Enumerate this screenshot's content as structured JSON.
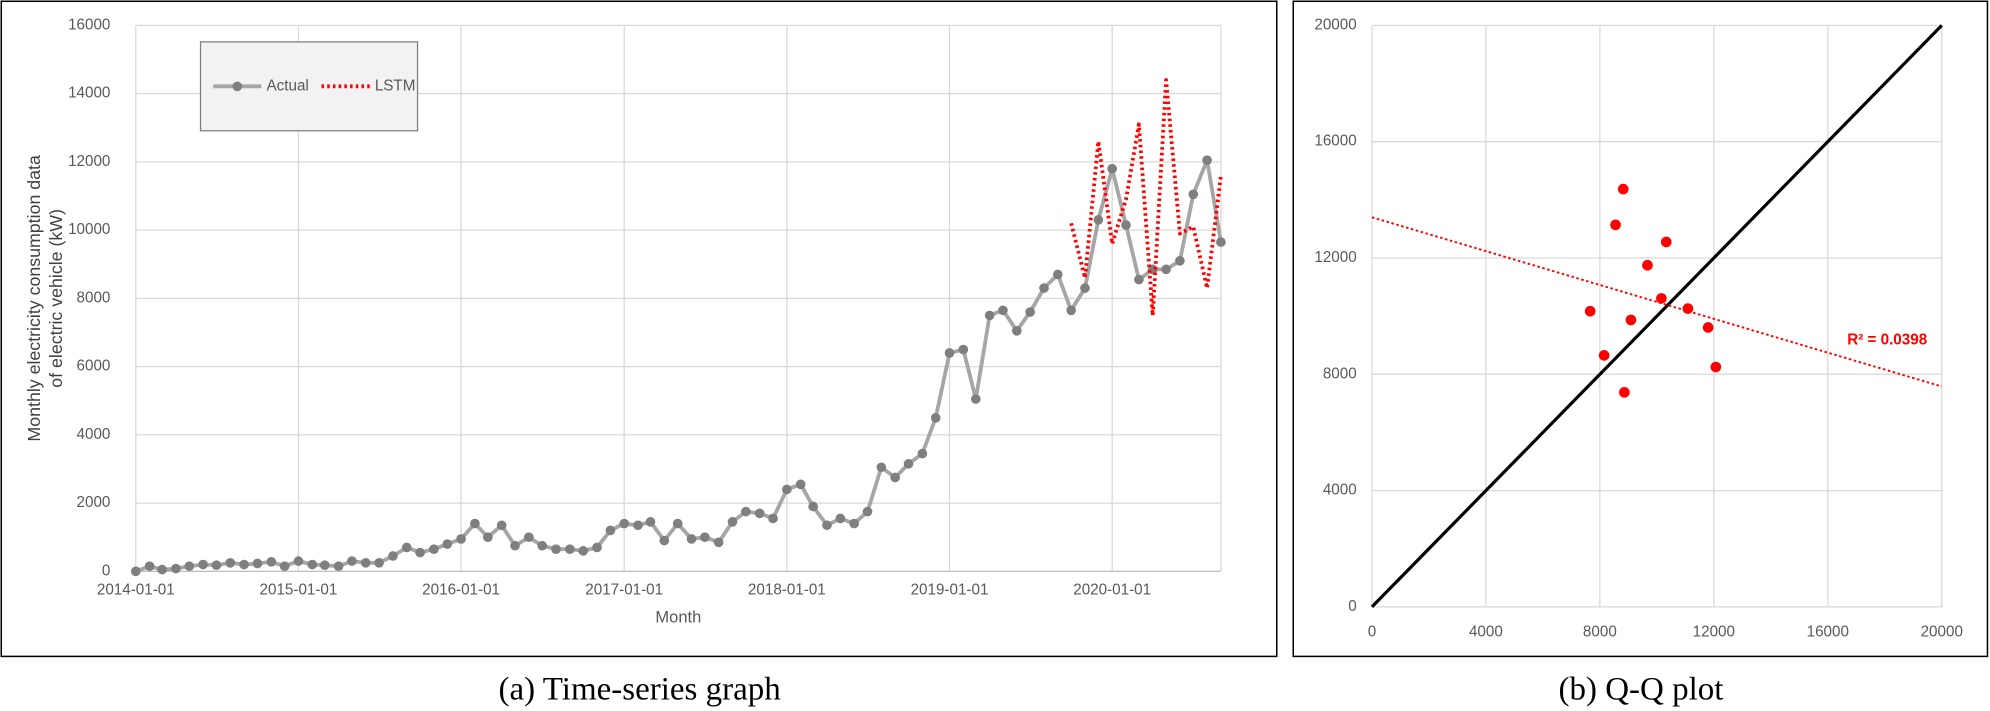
{
  "chart_data": [
    {
      "type": "line",
      "caption": "(a) Time-series graph",
      "xlabel": "Month",
      "ylabel": [
        "Monthly electricity consumption data",
        "of electric vehicle (kW)"
      ],
      "x": [
        "2014-01-01",
        "2014-02-01",
        "2014-03-01",
        "2014-04-01",
        "2014-05-01",
        "2014-06-01",
        "2014-07-01",
        "2014-08-01",
        "2014-09-01",
        "2014-10-01",
        "2014-11-01",
        "2014-12-01",
        "2015-01-01",
        "2015-02-01",
        "2015-03-01",
        "2015-04-01",
        "2015-05-01",
        "2015-06-01",
        "2015-07-01",
        "2015-08-01",
        "2015-09-01",
        "2015-10-01",
        "2015-11-01",
        "2015-12-01",
        "2016-01-01",
        "2016-02-01",
        "2016-03-01",
        "2016-04-01",
        "2016-05-01",
        "2016-06-01",
        "2016-07-01",
        "2016-08-01",
        "2016-09-01",
        "2016-10-01",
        "2016-11-01",
        "2016-12-01",
        "2017-01-01",
        "2017-02-01",
        "2017-03-01",
        "2017-04-01",
        "2017-05-01",
        "2017-06-01",
        "2017-07-01",
        "2017-08-01",
        "2017-09-01",
        "2017-10-01",
        "2017-11-01",
        "2017-12-01",
        "2018-01-01",
        "2018-02-01",
        "2018-03-01",
        "2018-04-01",
        "2018-05-01",
        "2018-06-01",
        "2018-07-01",
        "2018-08-01",
        "2018-09-01",
        "2018-10-01",
        "2018-11-01",
        "2018-12-01",
        "2019-01-01",
        "2019-02-01",
        "2019-03-01",
        "2019-04-01",
        "2019-05-01",
        "2019-06-01",
        "2019-07-01",
        "2019-08-01",
        "2019-09-01",
        "2019-10-01",
        "2019-11-01",
        "2019-12-01",
        "2020-01-01",
        "2020-02-01",
        "2020-03-01",
        "2020-04-01",
        "2020-05-01",
        "2020-06-01",
        "2020-07-01",
        "2020-08-01",
        "2020-09-01"
      ],
      "series": [
        {
          "name": "Actual",
          "color": "#a6a6a6",
          "marker_color": "#7f7f7f",
          "values": [
            0,
            150,
            50,
            80,
            150,
            200,
            180,
            250,
            200,
            230,
            280,
            150,
            300,
            200,
            180,
            150,
            300,
            250,
            250,
            450,
            700,
            550,
            650,
            800,
            950,
            1400,
            1000,
            1350,
            750,
            1000,
            750,
            650,
            650,
            600,
            700,
            1200,
            1400,
            1350,
            1450,
            900,
            1400,
            950,
            1000,
            850,
            1450,
            1750,
            1700,
            1550,
            2400,
            2550,
            1900,
            1350,
            1550,
            1400,
            1750,
            3050,
            2750,
            3150,
            3450,
            4500,
            6400,
            6500,
            5050,
            7500,
            7650,
            7050,
            7600,
            8300,
            8700,
            7650,
            8300,
            10300,
            11800,
            10150,
            8550,
            8850,
            8850,
            9100,
            11050,
            12050,
            9650
          ]
        },
        {
          "name": "LSTM",
          "color": "#ff0000",
          "dotted": true,
          "values": [
            null,
            null,
            null,
            null,
            null,
            null,
            null,
            null,
            null,
            null,
            null,
            null,
            null,
            null,
            null,
            null,
            null,
            null,
            null,
            null,
            null,
            null,
            null,
            null,
            null,
            null,
            null,
            null,
            null,
            null,
            null,
            null,
            null,
            null,
            null,
            null,
            null,
            null,
            null,
            null,
            null,
            null,
            null,
            null,
            null,
            null,
            null,
            null,
            null,
            null,
            null,
            null,
            null,
            null,
            null,
            null,
            null,
            null,
            null,
            null,
            null,
            null,
            null,
            null,
            null,
            null,
            null,
            null,
            null,
            10200,
            8600,
            12600,
            9600,
            10900,
            13100,
            7500,
            14400,
            9900,
            10100,
            8300,
            11600
          ]
        }
      ],
      "xlim": [
        "2014-01-01",
        "2020-09-01"
      ],
      "xticks": [
        "2014-01-01",
        "2015-01-01",
        "2016-01-01",
        "2017-01-01",
        "2018-01-01",
        "2019-01-01",
        "2020-01-01"
      ],
      "ylim": [
        0,
        16000
      ],
      "yticks": [
        0,
        2000,
        4000,
        6000,
        8000,
        10000,
        12000,
        14000,
        16000
      ],
      "grid": true,
      "legend": "upper left"
    },
    {
      "type": "scatter",
      "caption": "(b) Q-Q plot",
      "color": "#ff0000",
      "x": [
        7660,
        8150,
        8550,
        8820,
        8860,
        9090,
        9670,
        10160,
        10330,
        11090,
        11800,
        12070
      ],
      "values": [
        10170,
        8650,
        13140,
        14370,
        7380,
        9870,
        11750,
        10610,
        12550,
        10260,
        9610,
        8250
      ],
      "trendline": {
        "color": "#ff0000",
        "x": [
          0,
          20000
        ],
        "y": [
          13400,
          7580
        ]
      },
      "annotation": "R² = 0.0398",
      "identity_line": true,
      "xlim": [
        0,
        20000
      ],
      "xticks": [
        0,
        4000,
        8000,
        12000,
        16000,
        20000
      ],
      "ylim": [
        0,
        20000
      ],
      "yticks": [
        0,
        4000,
        8000,
        12000,
        16000,
        20000
      ],
      "grid": true
    }
  ]
}
